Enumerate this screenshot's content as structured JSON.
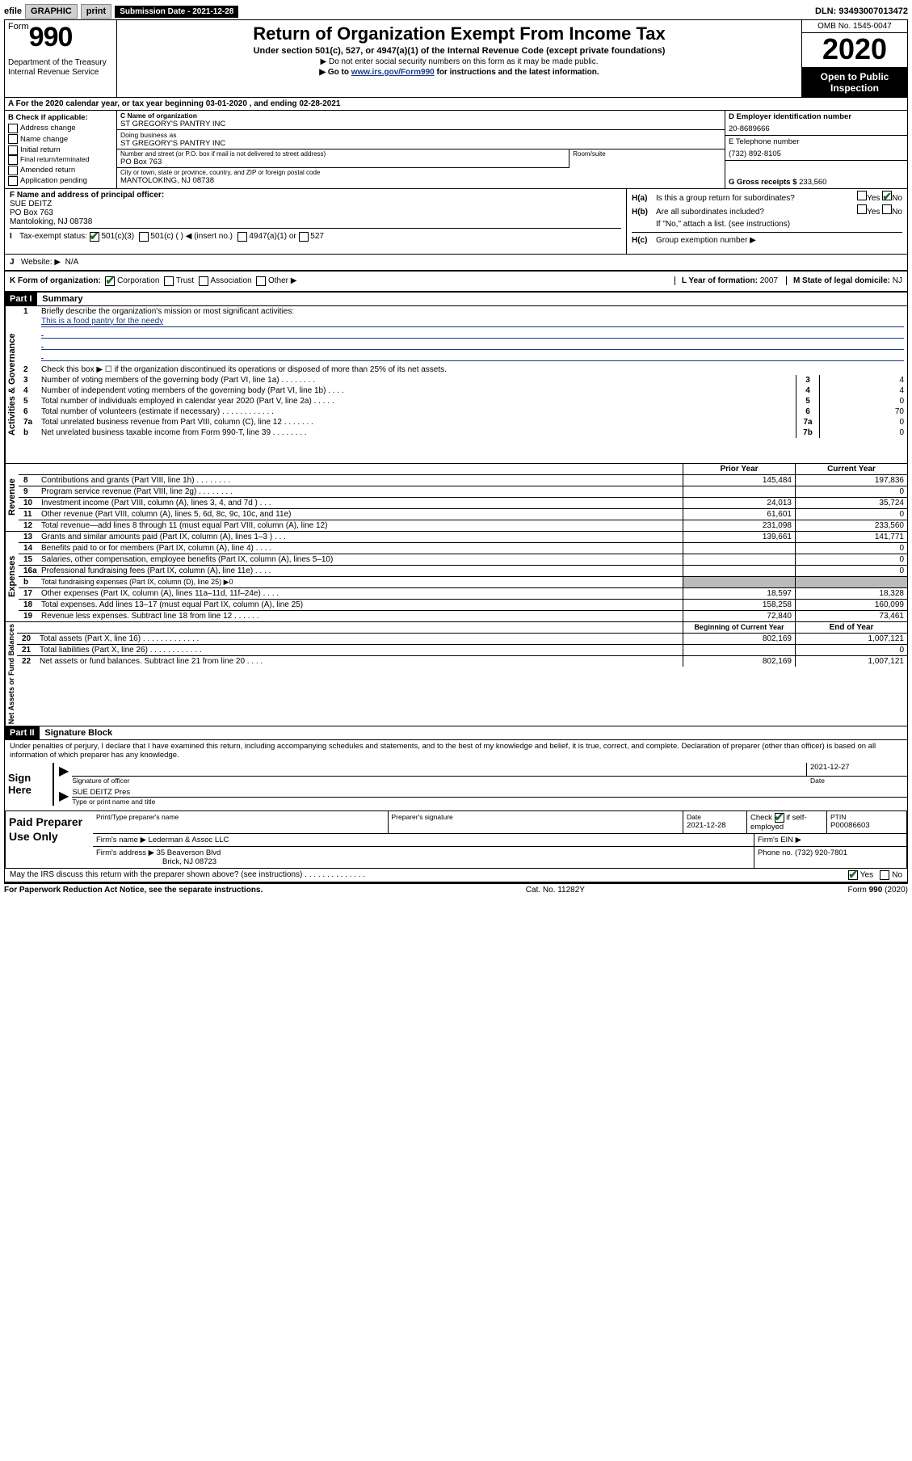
{
  "top": {
    "efile": "efile",
    "graphic": "GRAPHIC",
    "print": "print",
    "sub_date_lbl": "Submission Date - ",
    "sub_date": "2021-12-28",
    "dln": "DLN: 93493007013472"
  },
  "header": {
    "form_word": "Form",
    "form_num": "990",
    "dept": "Department of the Treasury\nInternal Revenue Service",
    "title": "Return of Organization Exempt From Income Tax",
    "sub": "Under section 501(c), 527, or 4947(a)(1) of the Internal Revenue Code (except private foundations)",
    "l1": "▶ Do not enter social security numbers on this form as it may be made public.",
    "l2_pre": "▶ Go to ",
    "l2_link": "www.irs.gov/Form990",
    "l2_post": " for instructions and the latest information.",
    "omb": "OMB No. 1545-0047",
    "year": "2020",
    "inspection": "Open to Public Inspection"
  },
  "row_a": "A   For the 2020 calendar year, or tax year beginning 03-01-2020    , and ending 02-28-2021",
  "b": {
    "title": "B Check if applicable:",
    "opts": [
      "Address change",
      "Name change",
      "Initial return",
      "Final return/terminated",
      "Amended return",
      "Application pending"
    ]
  },
  "c": {
    "name_lbl": "C Name of organization",
    "name": "ST GREGORY'S PANTRY INC",
    "dba_lbl": "Doing business as",
    "dba": "ST GREGORY'S PANTRY INC",
    "addr_lbl": "Number and street (or P.O. box if mail is not delivered to street address)",
    "room_lbl": "Room/suite",
    "addr": "PO Box 763",
    "city_lbl": "City or town, state or province, country, and ZIP or foreign postal code",
    "city": "MANTOLOKING, NJ  08738"
  },
  "d": {
    "lbl": "D Employer identification number",
    "val": "20-8689666"
  },
  "e": {
    "lbl": "E Telephone number",
    "val": "(732) 892-8105"
  },
  "g": {
    "lbl": "G Gross receipts $",
    "val": "233,560"
  },
  "f": {
    "lbl": "F  Name and address of principal officer:",
    "name": "SUE DEITZ",
    "addr": "PO Box 763",
    "city": "Mantoloking, NJ  08738"
  },
  "h": {
    "a_lbl": "H(a)",
    "a_txt": "Is this a group return for subordinates?",
    "a_yes": "Yes",
    "a_no": "No",
    "b_lbl": "H(b)",
    "b_txt": "Are all subordinates included?",
    "b_yes": "Yes",
    "b_no": "No",
    "b_note": "If \"No,\" attach a list. (see instructions)",
    "c_lbl": "H(c)",
    "c_txt": "Group exemption number ▶"
  },
  "i": {
    "lbl": "I",
    "txt": "Tax-exempt status:",
    "o1": "501(c)(3)",
    "o2": "501(c) (  ) ◀ (insert no.)",
    "o3": "4947(a)(1) or",
    "o4": "527"
  },
  "j": {
    "lbl": "J",
    "txt": "Website: ▶",
    "val": "N/A"
  },
  "k": {
    "lbl": "K Form of organization:",
    "o1": "Corporation",
    "o2": "Trust",
    "o3": "Association",
    "o4": "Other ▶",
    "l_lbl": "L Year of formation:",
    "l_val": "2007",
    "m_lbl": "M State of legal domicile:",
    "m_val": "NJ"
  },
  "part1": {
    "header": "Part I",
    "title": "Summary",
    "side1": "Activities & Governance",
    "side2": "Revenue",
    "side3": "Expenses",
    "side4": "Net Assets or Fund Balances",
    "l1": "Briefly describe the organization's mission or most significant activities:",
    "mission": "This is a food pantry for the needy",
    "l2": "Check this box ▶ ☐  if the organization discontinued its operations or disposed of more than 25% of its net assets.",
    "rows_gov": [
      {
        "n": "3",
        "d": "Number of voting members of the governing body (Part VI, line 1a)   .    .    .    .    .    .    .    .",
        "m": "3",
        "v": "4"
      },
      {
        "n": "4",
        "d": "Number of independent voting members of the governing body (Part VI, line 1b)   .    .    .    .",
        "m": "4",
        "v": "4"
      },
      {
        "n": "5",
        "d": "Total number of individuals employed in calendar year 2020 (Part V, line 2a)   .    .    .    .    .",
        "m": "5",
        "v": "0"
      },
      {
        "n": "6",
        "d": "Total number of volunteers (estimate if necessary)   .    .    .    .    .    .    .    .    .    .    .    .",
        "m": "6",
        "v": "70"
      },
      {
        "n": "7a",
        "d": "Total unrelated business revenue from Part VIII, column (C), line 12   .    .    .    .    .    .    .",
        "m": "7a",
        "v": "0"
      },
      {
        "n": "b",
        "d": "Net unrelated business taxable income from Form 990-T, line 39   .    .    .    .    .    .    .    .",
        "m": "7b",
        "v": "0"
      }
    ],
    "prior_hdr": "Prior Year",
    "curr_hdr": "Current Year",
    "rows_rev": [
      {
        "n": "8",
        "d": "Contributions and grants (Part VIII, line 1h)   .    .    .    .    .    .    .    .",
        "p": "145,484",
        "c": "197,836"
      },
      {
        "n": "9",
        "d": "Program service revenue (Part VIII, line 2g)   .    .    .    .    .    .    .    .",
        "p": "",
        "c": "0"
      },
      {
        "n": "10",
        "d": "Investment income (Part VIII, column (A), lines 3, 4, and 7d )   .    .    .",
        "p": "24,013",
        "c": "35,724"
      },
      {
        "n": "11",
        "d": "Other revenue (Part VIII, column (A), lines 5, 6d, 8c, 9c, 10c, and 11e)",
        "p": "61,601",
        "c": "0"
      },
      {
        "n": "12",
        "d": "Total revenue—add lines 8 through 11 (must equal Part VIII, column (A), line 12)",
        "p": "231,098",
        "c": "233,560"
      }
    ],
    "rows_exp": [
      {
        "n": "13",
        "d": "Grants and similar amounts paid (Part IX, column (A), lines 1–3 )   .    .    .",
        "p": "139,661",
        "c": "141,771"
      },
      {
        "n": "14",
        "d": "Benefits paid to or for members (Part IX, column (A), line 4)   .    .    .    .",
        "p": "",
        "c": "0"
      },
      {
        "n": "15",
        "d": "Salaries, other compensation, employee benefits (Part IX, column (A), lines 5–10)",
        "p": "",
        "c": "0"
      },
      {
        "n": "16a",
        "d": "Professional fundraising fees (Part IX, column (A), line 11e)   .    .    .    .",
        "p": "",
        "c": "0"
      },
      {
        "n": "b",
        "d": "Total fundraising expenses (Part IX, column (D), line 25) ▶0",
        "p": "shade",
        "c": "shade"
      },
      {
        "n": "17",
        "d": "Other expenses (Part IX, column (A), lines 11a–11d, 11f–24e)   .    .    .    .",
        "p": "18,597",
        "c": "18,328"
      },
      {
        "n": "18",
        "d": "Total expenses. Add lines 13–17 (must equal Part IX, column (A), line 25)",
        "p": "158,258",
        "c": "160,099"
      },
      {
        "n": "19",
        "d": "Revenue less expenses. Subtract line 18 from line 12   .    .    .    .    .    .",
        "p": "72,840",
        "c": "73,461"
      }
    ],
    "begin_hdr": "Beginning of Current Year",
    "end_hdr": "End of Year",
    "rows_net": [
      {
        "n": "20",
        "d": "Total assets (Part X, line 16)   .    .    .    .    .    .    .    .    .    .    .    .    .",
        "p": "802,169",
        "c": "1,007,121"
      },
      {
        "n": "21",
        "d": "Total liabilities (Part X, line 26)   .    .    .    .    .    .    .    .    .    .    .    .",
        "p": "",
        "c": "0"
      },
      {
        "n": "22",
        "d": "Net assets or fund balances. Subtract line 21 from line 20   .    .    .    .",
        "p": "802,169",
        "c": "1,007,121"
      }
    ]
  },
  "part2": {
    "header": "Part II",
    "title": "Signature Block",
    "perjury": "Under penalties of perjury, I declare that I have examined this return, including accompanying schedules and statements, and to the best of my knowledge and belief, it is true, correct, and complete. Declaration of preparer (other than officer) is based on all information of which preparer has any knowledge.",
    "sign_here": "Sign Here",
    "sig_officer": "Signature of officer",
    "date_lbl": "Date",
    "date": "2021-12-27",
    "officer": "SUE DEITZ Pres",
    "type_name": "Type or print name and title",
    "paid": "Paid Preparer Use Only",
    "prep_name_lbl": "Print/Type preparer's name",
    "prep_sig_lbl": "Preparer's signature",
    "prep_date": "2021-12-28",
    "prep_check_lbl": "Check",
    "prep_self": "if self-employed",
    "ptin_lbl": "PTIN",
    "ptin": "P00086603",
    "firm_lbl": "Firm's name   ▶",
    "firm": "Lederman & Assoc LLC",
    "firm_ein_lbl": "Firm's EIN ▶",
    "firm_addr_lbl": "Firm's address ▶",
    "firm_addr": "35 Beaverson Blvd",
    "firm_city": "Brick, NJ  08723",
    "phone_lbl": "Phone no.",
    "phone": "(732) 920-7801",
    "discuss": "May the IRS discuss this return with the preparer shown above? (see instructions)   .    .    .    .    .    .    .    .    .    .    .    .    .    .",
    "paperwork": "For Paperwork Reduction Act Notice, see the separate instructions.",
    "catno": "Cat. No. 11282Y",
    "form_footer": "Form 990 (2020)"
  }
}
